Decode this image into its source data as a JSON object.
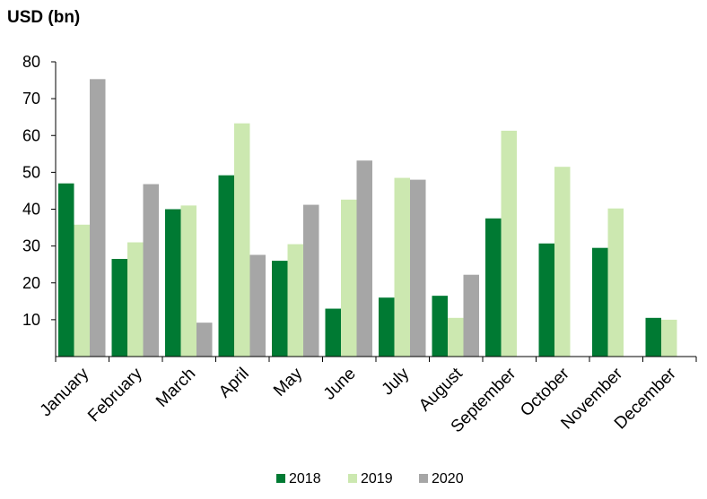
{
  "chart_data": {
    "type": "bar",
    "ylabel": "USD (bn)",
    "xlabel": "",
    "ylim": [
      0,
      80
    ],
    "yticks": [
      10,
      20,
      30,
      40,
      50,
      60,
      70,
      80
    ],
    "grid": false,
    "legend_position": "bottom",
    "categories": [
      "January",
      "February",
      "March",
      "April",
      "May",
      "June",
      "July",
      "August",
      "September",
      "October",
      "November",
      "December"
    ],
    "series": [
      {
        "name": "2018",
        "color": "#007a33",
        "values": [
          47,
          26.5,
          40,
          49.2,
          26,
          13,
          16,
          16.5,
          37.5,
          30.7,
          29.5,
          10.5
        ]
      },
      {
        "name": "2019",
        "color": "#cce8b0",
        "values": [
          35.8,
          31,
          41,
          63.3,
          30.5,
          42.6,
          48.5,
          10.5,
          61.3,
          51.5,
          40.2,
          10
        ]
      },
      {
        "name": "2020",
        "color": "#a6a6a6",
        "values": [
          75.3,
          46.8,
          9.2,
          27.6,
          41.2,
          53.2,
          48,
          22.2,
          null,
          null,
          null,
          null
        ]
      }
    ]
  }
}
